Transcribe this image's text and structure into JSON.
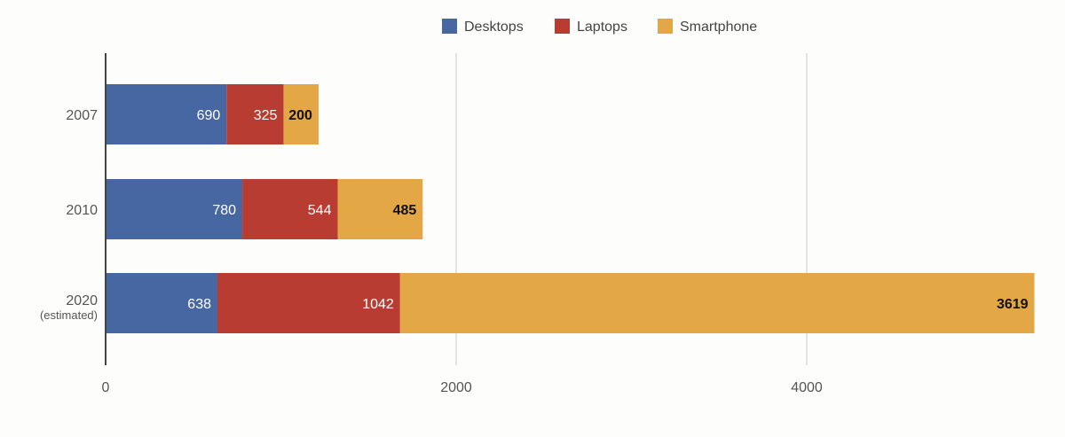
{
  "chart_data": {
    "type": "bar",
    "orientation": "horizontal",
    "stacked": true,
    "categories": [
      "2007",
      "2010",
      "2020"
    ],
    "category_sublabels": [
      "",
      "",
      "(estimated)"
    ],
    "series": [
      {
        "name": "Desktops",
        "color": "#4667a2",
        "values": [
          690,
          780,
          638
        ]
      },
      {
        "name": "Laptops",
        "color": "#b93c33",
        "values": [
          325,
          544,
          1042
        ]
      },
      {
        "name": "Smartphone",
        "color": "#e4a746",
        "values": [
          200,
          485,
          3619
        ]
      }
    ],
    "xticks": [
      "0",
      "2000",
      "4000"
    ],
    "xlim": [
      0,
      5300
    ],
    "grid": true,
    "legend": "top",
    "data_labels": true
  }
}
